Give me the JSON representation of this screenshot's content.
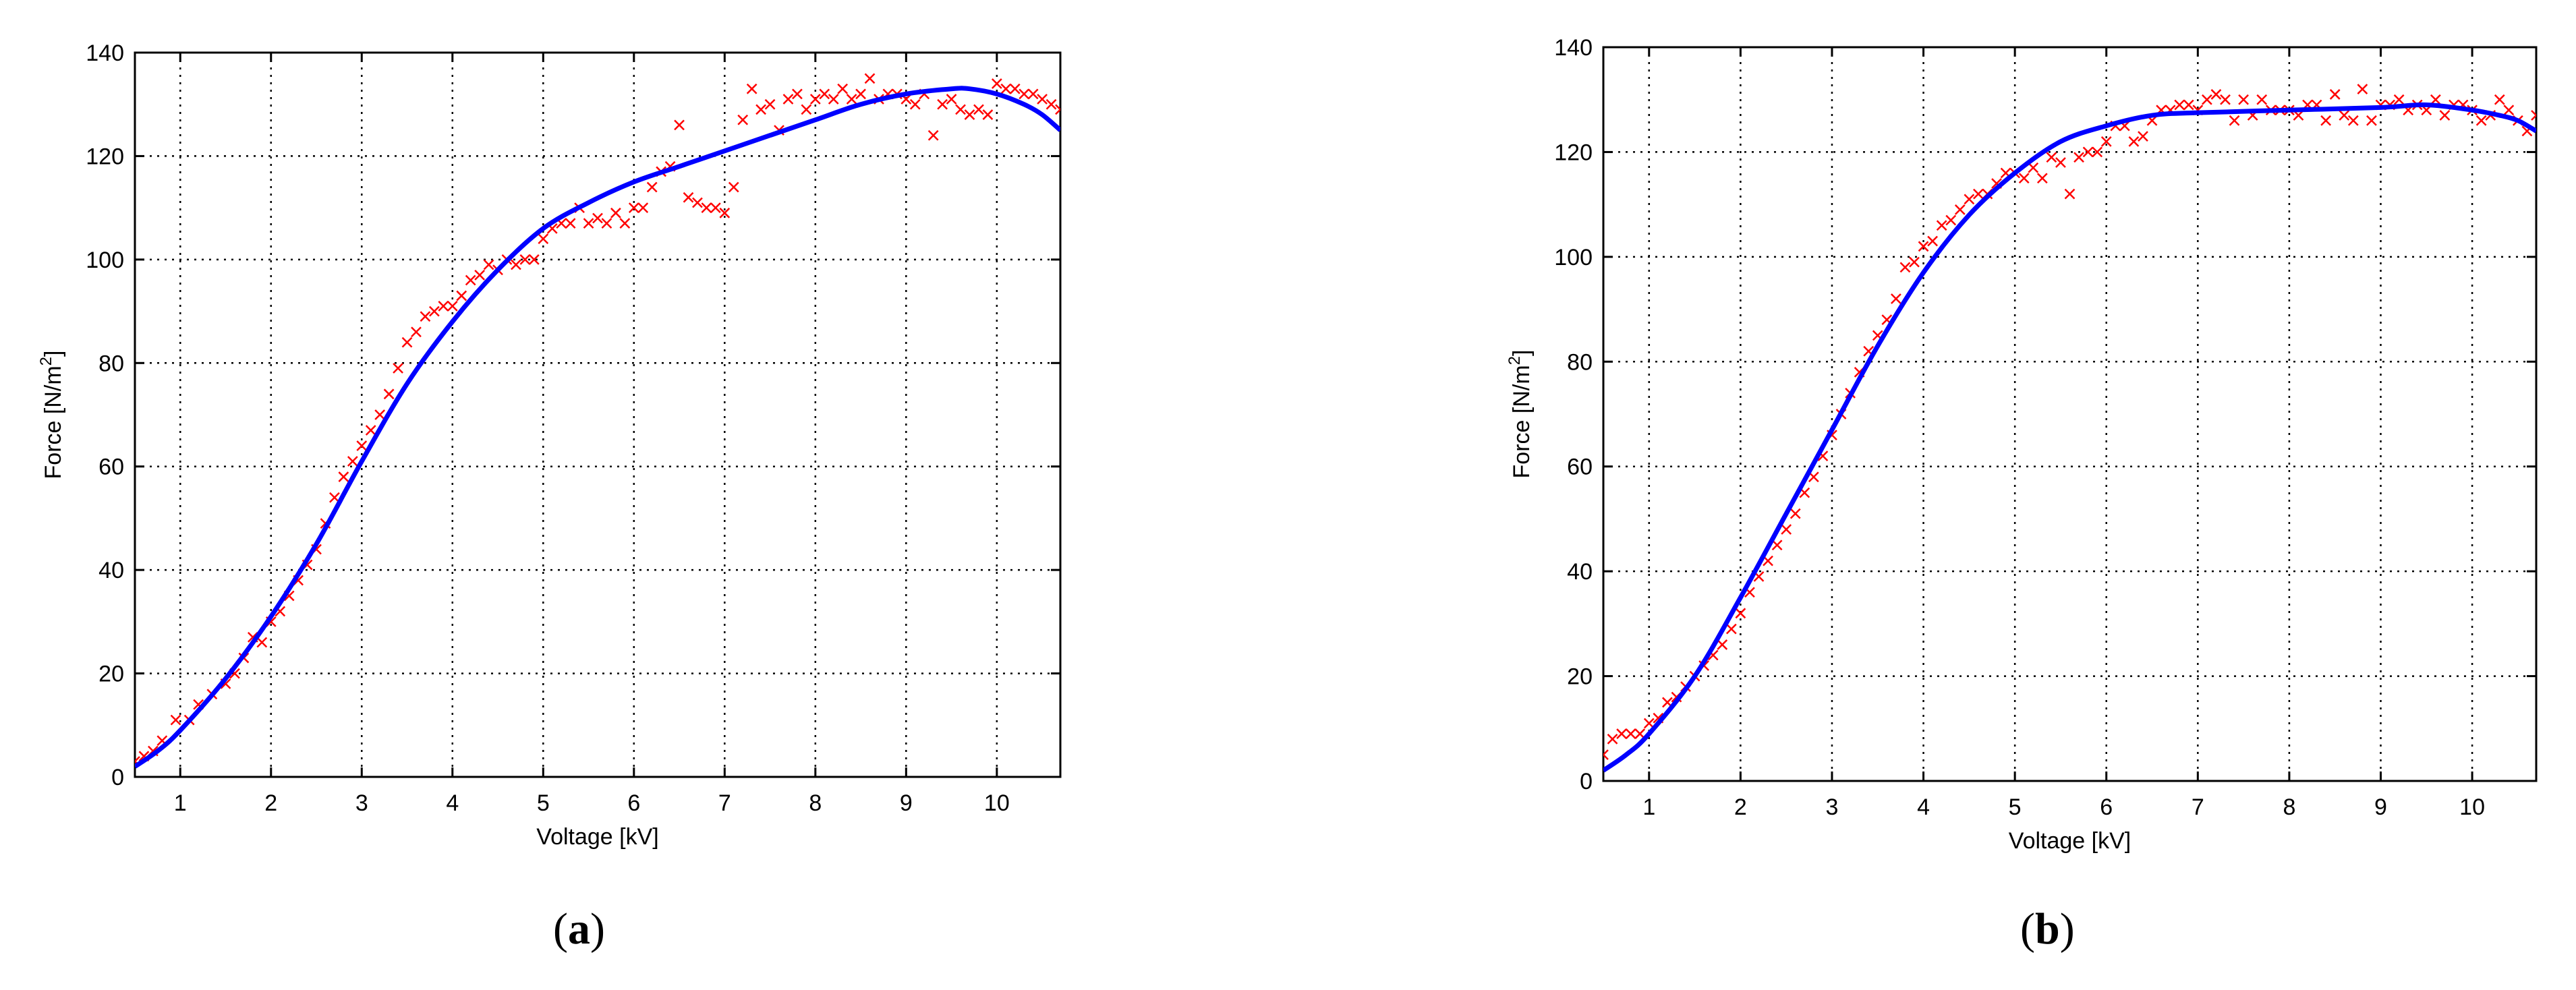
{
  "chart_data": [
    {
      "type": "scatter",
      "panel": "(a)",
      "panel_letter": "a",
      "xlabel": "Voltage [kV]",
      "ylabel_main": "Force [N/m",
      "ylabel_sup": "2",
      "ylabel_end": "]",
      "xlim": [
        0.5,
        10.7
      ],
      "ylim": [
        0,
        140
      ],
      "xticks": [
        1,
        2,
        3,
        4,
        5,
        6,
        7,
        8,
        9,
        10
      ],
      "yticks": [
        0,
        20,
        40,
        60,
        80,
        100,
        120,
        140
      ],
      "grid": true,
      "colors": {
        "scatter": "#ff0000",
        "fit": "#0000ff"
      },
      "series": [
        {
          "kind": "measured",
          "marker": "x",
          "points": [
            [
              0.5,
              3
            ],
            [
              0.6,
              4
            ],
            [
              0.7,
              5
            ],
            [
              0.8,
              7
            ],
            [
              0.95,
              11
            ],
            [
              1.1,
              11
            ],
            [
              1.2,
              14
            ],
            [
              1.35,
              16
            ],
            [
              1.5,
              18
            ],
            [
              1.6,
              20
            ],
            [
              1.7,
              23
            ],
            [
              1.8,
              27
            ],
            [
              1.9,
              26
            ],
            [
              2.0,
              30
            ],
            [
              2.1,
              32
            ],
            [
              2.2,
              35
            ],
            [
              2.3,
              38
            ],
            [
              2.4,
              41
            ],
            [
              2.5,
              44
            ],
            [
              2.6,
              49
            ],
            [
              2.7,
              54
            ],
            [
              2.8,
              58
            ],
            [
              2.9,
              61
            ],
            [
              3.0,
              64
            ],
            [
              3.1,
              67
            ],
            [
              3.2,
              70
            ],
            [
              3.3,
              74
            ],
            [
              3.4,
              79
            ],
            [
              3.5,
              84
            ],
            [
              3.6,
              86
            ],
            [
              3.7,
              89
            ],
            [
              3.8,
              90
            ],
            [
              3.9,
              91
            ],
            [
              4.0,
              91
            ],
            [
              4.1,
              93
            ],
            [
              4.2,
              96
            ],
            [
              4.3,
              97
            ],
            [
              4.4,
              99
            ],
            [
              4.5,
              98
            ],
            [
              4.6,
              100
            ],
            [
              4.7,
              99
            ],
            [
              4.8,
              100
            ],
            [
              4.9,
              100
            ],
            [
              5.0,
              104
            ],
            [
              5.1,
              106
            ],
            [
              5.2,
              107
            ],
            [
              5.3,
              107
            ],
            [
              5.4,
              110
            ],
            [
              5.5,
              107
            ],
            [
              5.6,
              108
            ],
            [
              5.7,
              107
            ],
            [
              5.8,
              109
            ],
            [
              5.9,
              107
            ],
            [
              6.0,
              110
            ],
            [
              6.1,
              110
            ],
            [
              6.2,
              114
            ],
            [
              6.3,
              117
            ],
            [
              6.4,
              118
            ],
            [
              6.5,
              126
            ],
            [
              6.6,
              112
            ],
            [
              6.7,
              111
            ],
            [
              6.8,
              110
            ],
            [
              6.9,
              110
            ],
            [
              7.0,
              109
            ],
            [
              7.1,
              114
            ],
            [
              7.2,
              127
            ],
            [
              7.3,
              133
            ],
            [
              7.4,
              129
            ],
            [
              7.5,
              130
            ],
            [
              7.6,
              125
            ],
            [
              7.7,
              131
            ],
            [
              7.8,
              132
            ],
            [
              7.9,
              129
            ],
            [
              8.0,
              131
            ],
            [
              8.1,
              132
            ],
            [
              8.2,
              131
            ],
            [
              8.3,
              133
            ],
            [
              8.4,
              131
            ],
            [
              8.5,
              132
            ],
            [
              8.6,
              135
            ],
            [
              8.7,
              131
            ],
            [
              8.8,
              132
            ],
            [
              8.9,
              132
            ],
            [
              9.0,
              131
            ],
            [
              9.1,
              130
            ],
            [
              9.2,
              132
            ],
            [
              9.3,
              124
            ],
            [
              9.4,
              130
            ],
            [
              9.5,
              131
            ],
            [
              9.6,
              129
            ],
            [
              9.7,
              128
            ],
            [
              9.8,
              129
            ],
            [
              9.9,
              128
            ],
            [
              10.0,
              134
            ],
            [
              10.1,
              133
            ],
            [
              10.2,
              133
            ],
            [
              10.3,
              132
            ],
            [
              10.4,
              132
            ],
            [
              10.5,
              131
            ],
            [
              10.6,
              130
            ],
            [
              10.7,
              129
            ]
          ]
        },
        {
          "kind": "fit",
          "line": "solid",
          "points": [
            [
              0.5,
              2
            ],
            [
              0.75,
              5
            ],
            [
              1.0,
              9
            ],
            [
              1.5,
              19
            ],
            [
              2.0,
              31
            ],
            [
              2.5,
              45
            ],
            [
              3.0,
              61
            ],
            [
              3.5,
              76
            ],
            [
              4.0,
              88
            ],
            [
              4.5,
              98
            ],
            [
              5.0,
              106
            ],
            [
              5.5,
              111
            ],
            [
              6.0,
              115
            ],
            [
              6.5,
              118
            ],
            [
              7.0,
              121
            ],
            [
              7.5,
              124
            ],
            [
              8.0,
              127
            ],
            [
              8.5,
              130
            ],
            [
              9.0,
              132
            ],
            [
              9.5,
              133
            ],
            [
              9.7,
              133
            ],
            [
              10.0,
              132
            ],
            [
              10.3,
              130
            ],
            [
              10.5,
              128
            ],
            [
              10.7,
              125
            ]
          ]
        }
      ]
    },
    {
      "type": "scatter",
      "panel": "(b)",
      "panel_letter": "b",
      "xlabel": "Voltage [kV]",
      "ylabel_main": "Force [N/m",
      "ylabel_sup": "2",
      "ylabel_end": "]",
      "xlim": [
        0.5,
        10.7
      ],
      "ylim": [
        0,
        140
      ],
      "xticks": [
        1,
        2,
        3,
        4,
        5,
        6,
        7,
        8,
        9,
        10
      ],
      "yticks": [
        0,
        20,
        40,
        60,
        80,
        100,
        120,
        140
      ],
      "grid": true,
      "colors": {
        "scatter": "#ff0000",
        "fit": "#0000ff"
      },
      "series": [
        {
          "kind": "measured",
          "marker": "x",
          "points": [
            [
              0.5,
              5
            ],
            [
              0.6,
              8
            ],
            [
              0.7,
              9
            ],
            [
              0.8,
              9
            ],
            [
              0.9,
              9
            ],
            [
              1.0,
              11
            ],
            [
              1.1,
              12
            ],
            [
              1.2,
              15
            ],
            [
              1.3,
              16
            ],
            [
              1.4,
              18
            ],
            [
              1.5,
              20
            ],
            [
              1.6,
              22
            ],
            [
              1.7,
              24
            ],
            [
              1.8,
              26
            ],
            [
              1.9,
              29
            ],
            [
              2.0,
              32
            ],
            [
              2.1,
              36
            ],
            [
              2.2,
              39
            ],
            [
              2.3,
              42
            ],
            [
              2.4,
              45
            ],
            [
              2.5,
              48
            ],
            [
              2.6,
              51
            ],
            [
              2.7,
              55
            ],
            [
              2.8,
              58
            ],
            [
              2.9,
              62
            ],
            [
              3.0,
              66
            ],
            [
              3.1,
              70
            ],
            [
              3.2,
              74
            ],
            [
              3.3,
              78
            ],
            [
              3.4,
              82
            ],
            [
              3.5,
              85
            ],
            [
              3.6,
              88
            ],
            [
              3.7,
              92
            ],
            [
              3.8,
              98
            ],
            [
              3.9,
              99
            ],
            [
              4.0,
              102
            ],
            [
              4.1,
              103
            ],
            [
              4.2,
              106
            ],
            [
              4.3,
              107
            ],
            [
              4.4,
              109
            ],
            [
              4.5,
              111
            ],
            [
              4.6,
              112
            ],
            [
              4.7,
              112
            ],
            [
              4.8,
              114
            ],
            [
              4.9,
              116
            ],
            [
              5.0,
              116
            ],
            [
              5.1,
              115
            ],
            [
              5.2,
              117
            ],
            [
              5.3,
              115
            ],
            [
              5.4,
              119
            ],
            [
              5.5,
              118
            ],
            [
              5.6,
              112
            ],
            [
              5.7,
              119
            ],
            [
              5.8,
              120
            ],
            [
              5.9,
              120
            ],
            [
              6.0,
              122
            ],
            [
              6.1,
              125
            ],
            [
              6.2,
              125
            ],
            [
              6.3,
              122
            ],
            [
              6.4,
              123
            ],
            [
              6.5,
              126
            ],
            [
              6.6,
              128
            ],
            [
              6.7,
              128
            ],
            [
              6.8,
              129
            ],
            [
              6.9,
              129
            ],
            [
              7.0,
              128
            ],
            [
              7.1,
              130
            ],
            [
              7.2,
              131
            ],
            [
              7.3,
              130
            ],
            [
              7.4,
              126
            ],
            [
              7.5,
              130
            ],
            [
              7.6,
              127
            ],
            [
              7.7,
              130
            ],
            [
              7.8,
              128
            ],
            [
              7.9,
              128
            ],
            [
              8.0,
              128
            ],
            [
              8.1,
              127
            ],
            [
              8.2,
              129
            ],
            [
              8.3,
              129
            ],
            [
              8.4,
              126
            ],
            [
              8.5,
              131
            ],
            [
              8.6,
              127
            ],
            [
              8.7,
              126
            ],
            [
              8.8,
              132
            ],
            [
              8.9,
              126
            ],
            [
              9.0,
              129
            ],
            [
              9.1,
              129
            ],
            [
              9.2,
              130
            ],
            [
              9.3,
              128
            ],
            [
              9.4,
              129
            ],
            [
              9.5,
              128
            ],
            [
              9.6,
              130
            ],
            [
              9.7,
              127
            ],
            [
              9.8,
              129
            ],
            [
              9.9,
              129
            ],
            [
              10.0,
              128
            ],
            [
              10.1,
              126
            ],
            [
              10.2,
              127
            ],
            [
              10.3,
              130
            ],
            [
              10.4,
              128
            ],
            [
              10.5,
              126
            ],
            [
              10.6,
              124
            ],
            [
              10.7,
              127
            ]
          ]
        },
        {
          "kind": "fit",
          "line": "solid",
          "points": [
            [
              0.5,
              2
            ],
            [
              0.75,
              5
            ],
            [
              1.0,
              9
            ],
            [
              1.5,
              20
            ],
            [
              2.0,
              35
            ],
            [
              2.5,
              51
            ],
            [
              3.0,
              67
            ],
            [
              3.5,
              83
            ],
            [
              4.0,
              97
            ],
            [
              4.5,
              108
            ],
            [
              5.0,
              116
            ],
            [
              5.5,
              122
            ],
            [
              6.0,
              125
            ],
            [
              6.5,
              127
            ],
            [
              7.0,
              127.5
            ],
            [
              8.0,
              128
            ],
            [
              9.0,
              128.5
            ],
            [
              9.5,
              129
            ],
            [
              10.0,
              128
            ],
            [
              10.3,
              127
            ],
            [
              10.5,
              126
            ],
            [
              10.7,
              124
            ]
          ]
        }
      ]
    }
  ]
}
